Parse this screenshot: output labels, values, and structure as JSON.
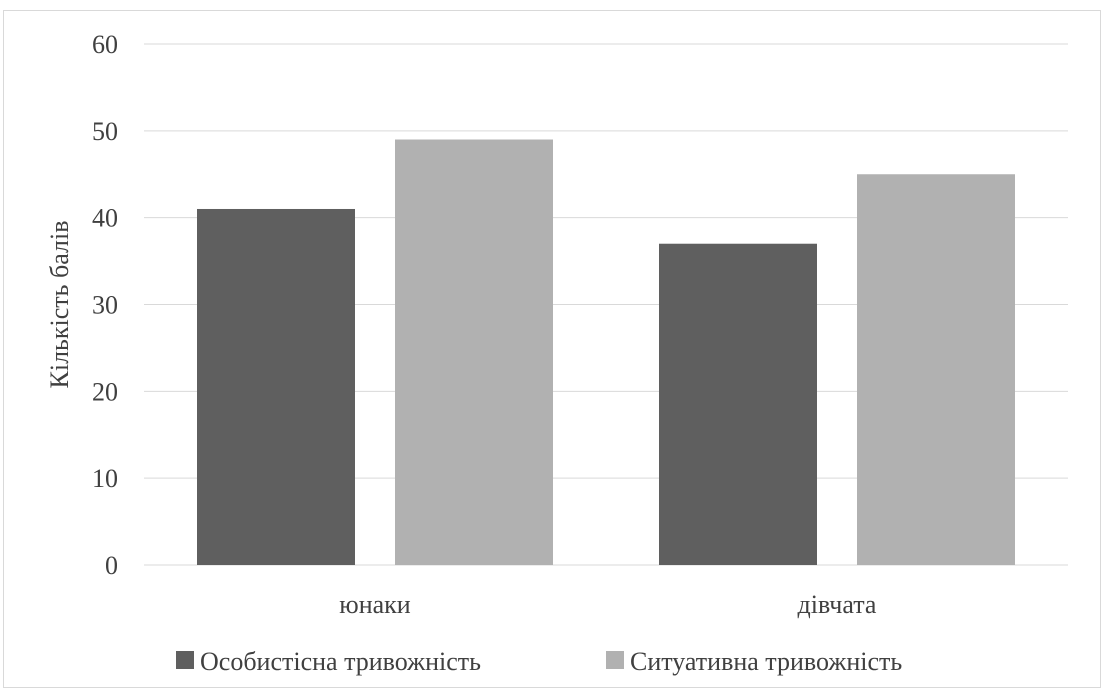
{
  "chart_data": {
    "type": "bar",
    "title": "",
    "xlabel": "",
    "ylabel": "Кількість балів",
    "ylim": [
      0,
      60
    ],
    "yticks": [
      0,
      10,
      20,
      30,
      40,
      50,
      60
    ],
    "grid": true,
    "legend_position": "bottom",
    "categories": [
      "юнаки",
      "дівчата"
    ],
    "series": [
      {
        "name": "Особистісна тривожність",
        "color": "#5f5f5f",
        "values": [
          41,
          37
        ]
      },
      {
        "name": "Ситуативна тривожність",
        "color": "#b1b1b1",
        "values": [
          49,
          45
        ]
      }
    ]
  }
}
